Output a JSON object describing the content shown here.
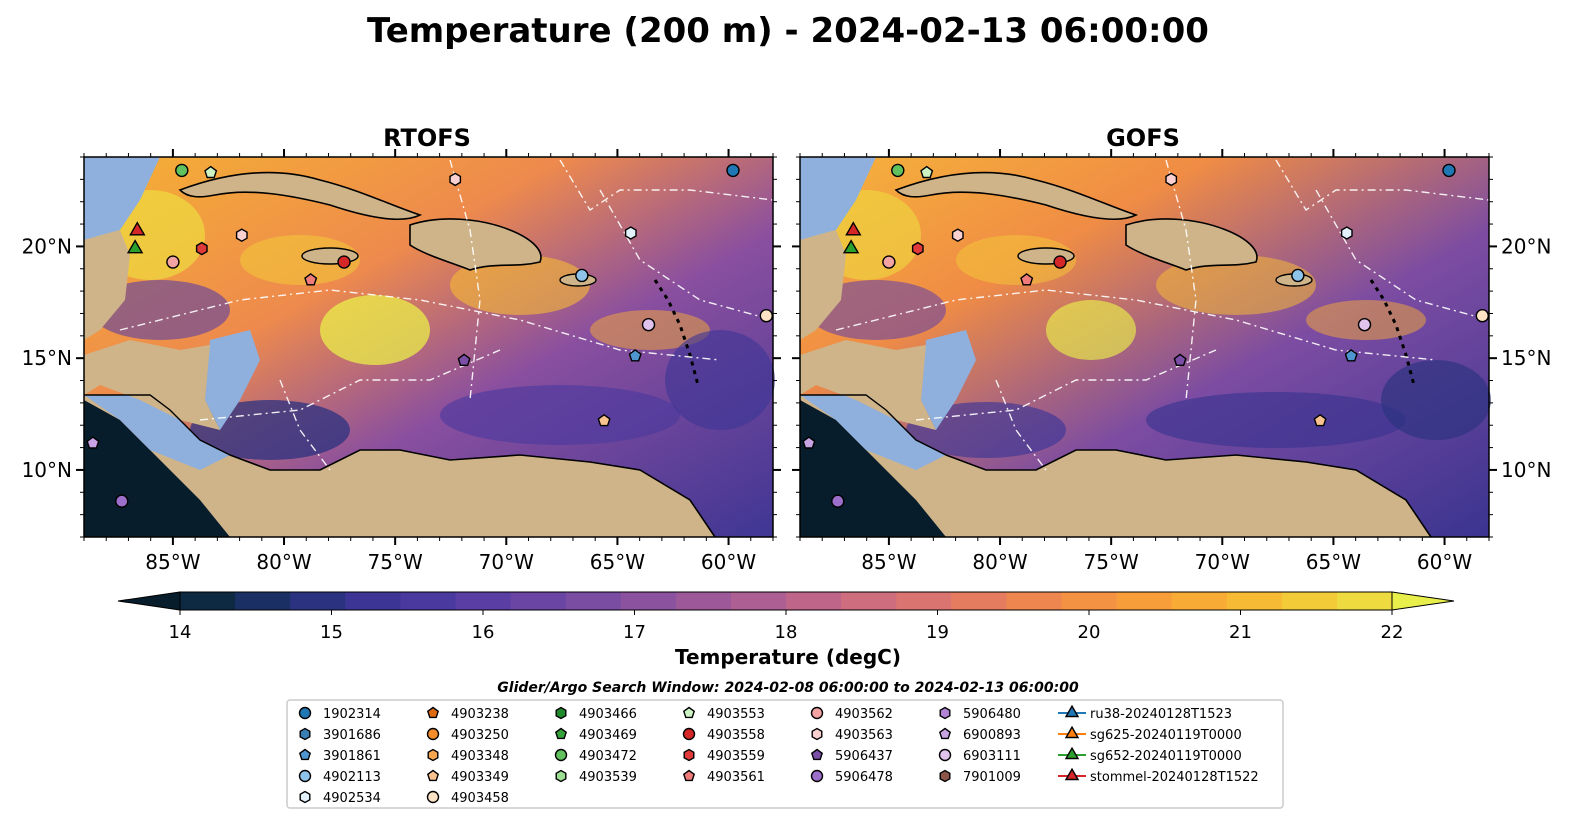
{
  "figure": {
    "title": "Temperature (200 m) - 2024-02-13 06:00:00"
  },
  "panels": [
    {
      "title": "RTOFS"
    },
    {
      "title": "GOFS"
    }
  ],
  "axes": {
    "x_ticks": [
      "85°W",
      "80°W",
      "75°W",
      "70°W",
      "65°W",
      "60°W"
    ],
    "x_tick_values": [
      -85,
      -80,
      -75,
      -70,
      -65,
      -60
    ],
    "y_ticks": [
      "20°N",
      "15°N",
      "10°N"
    ],
    "y_tick_values": [
      20,
      15,
      10
    ],
    "lon_range": [
      -89,
      -58
    ],
    "lat_range": [
      7,
      24
    ]
  },
  "colorbar": {
    "label": "Temperature (degC)",
    "ticks": [
      "14",
      "15",
      "16",
      "17",
      "18",
      "19",
      "20",
      "21",
      "22"
    ],
    "range": [
      14,
      22
    ],
    "extend": "both",
    "colors": [
      "#071d2b",
      "#0e2a43",
      "#1a2f63",
      "#2b3280",
      "#3c3596",
      "#4a399f",
      "#5a3ea3",
      "#6a45a4",
      "#7a4ca2",
      "#8b529f",
      "#9c5899",
      "#ad5e92",
      "#bf6589",
      "#cd6d7e",
      "#da7470",
      "#e57c5f",
      "#ee8650",
      "#f49244",
      "#f79e3b",
      "#f8ab35",
      "#f6ba34",
      "#f3ca38",
      "#eedb40",
      "#e9ef4a"
    ]
  },
  "legend": {
    "title": "Glider/Argo Search Window: 2024-02-08 06:00:00 to 2024-02-13 06:00:00",
    "columns": [
      [
        {
          "label": "1902314",
          "marker": "circle",
          "color": "#1f77b4"
        },
        {
          "label": "3901686",
          "marker": "hexagon",
          "color": "#3a7fb3"
        },
        {
          "label": "3901861",
          "marker": "pentagon",
          "color": "#4f95cf"
        },
        {
          "label": "4902113",
          "marker": "circle",
          "color": "#8fc3ea"
        },
        {
          "label": "4902534",
          "marker": "hexagon",
          "color": "#e3f1fb"
        }
      ],
      [
        {
          "label": "4903238",
          "marker": "pentagon",
          "color": "#e06a10"
        },
        {
          "label": "4903250",
          "marker": "circle",
          "color": "#f38c2a"
        },
        {
          "label": "4903348",
          "marker": "hexagon",
          "color": "#f7a64f"
        },
        {
          "label": "4903349",
          "marker": "pentagon",
          "color": "#f9c38f"
        },
        {
          "label": "4903458",
          "marker": "circle",
          "color": "#fde3c6"
        }
      ],
      [
        {
          "label": "4903466",
          "marker": "hexagon",
          "color": "#1f8a2a"
        },
        {
          "label": "4903469",
          "marker": "pentagon",
          "color": "#36a33a"
        },
        {
          "label": "4903472",
          "marker": "circle",
          "color": "#62c15f"
        },
        {
          "label": "4903539",
          "marker": "hexagon",
          "color": "#9ede94"
        }
      ],
      [
        {
          "label": "4903553",
          "marker": "pentagon",
          "color": "#cdf3c2"
        },
        {
          "label": "4903558",
          "marker": "circle",
          "color": "#d62728"
        },
        {
          "label": "4903559",
          "marker": "hexagon",
          "color": "#e03a3a"
        },
        {
          "label": "4903561",
          "marker": "pentagon",
          "color": "#ef7b7b"
        }
      ],
      [
        {
          "label": "4903562",
          "marker": "circle",
          "color": "#f4a3a3"
        },
        {
          "label": "4903563",
          "marker": "hexagon",
          "color": "#fad0d0"
        },
        {
          "label": "5906437",
          "marker": "pentagon",
          "color": "#7b4ea8"
        },
        {
          "label": "5906478",
          "marker": "circle",
          "color": "#9c6fca"
        }
      ],
      [
        {
          "label": "5906480",
          "marker": "hexagon",
          "color": "#b184d6"
        },
        {
          "label": "6900893",
          "marker": "pentagon",
          "color": "#c9a4e4"
        },
        {
          "label": "6903111",
          "marker": "circle",
          "color": "#e0c4ee"
        },
        {
          "label": "7901009",
          "marker": "hexagon",
          "color": "#8c564b"
        }
      ],
      [
        {
          "label": "ru38-20240128T1523",
          "marker": "triangle",
          "color": "#1f77b4"
        },
        {
          "label": "sg625-20240119T0000",
          "marker": "triangle",
          "color": "#ff7f0e"
        },
        {
          "label": "sg652-20240119T0000",
          "marker": "triangle",
          "color": "#2ca02c"
        },
        {
          "label": "stommel-20240128T1522",
          "marker": "triangle",
          "color": "#d62728"
        }
      ]
    ]
  },
  "map_markers": [
    {
      "id": "1902314",
      "lon": -59.8,
      "lat": 23.4,
      "marker": "circle",
      "color": "#1f77b4"
    },
    {
      "id": "4903472",
      "lon": -84.6,
      "lat": 23.4,
      "marker": "circle",
      "color": "#62c15f"
    },
    {
      "id": "4903553",
      "lon": -83.3,
      "lat": 23.3,
      "marker": "pentagon",
      "color": "#cdf3c2"
    },
    {
      "id": "4903563",
      "lon": -72.3,
      "lat": 23.0,
      "marker": "hexagon",
      "color": "#fad0d0"
    },
    {
      "id": "stommel-20240128T1522",
      "lon": -86.6,
      "lat": 20.7,
      "marker": "triangle",
      "color": "#d62728"
    },
    {
      "id": "sg652-20240119T0000",
      "lon": -86.7,
      "lat": 19.9,
      "marker": "triangle",
      "color": "#2ca02c"
    },
    {
      "id": "4903562",
      "lon": -85.0,
      "lat": 19.3,
      "marker": "circle",
      "color": "#f4a3a3"
    },
    {
      "id": "4903559",
      "lon": -83.7,
      "lat": 19.9,
      "marker": "hexagon",
      "color": "#e03a3a"
    },
    {
      "id": "4903563b",
      "lon": -81.9,
      "lat": 20.5,
      "marker": "hexagon",
      "color": "#fad0d0"
    },
    {
      "id": "4903558",
      "lon": -77.3,
      "lat": 19.3,
      "marker": "circle",
      "color": "#d62728"
    },
    {
      "id": "4903561",
      "lon": -78.8,
      "lat": 18.5,
      "marker": "pentagon",
      "color": "#ef7b7b"
    },
    {
      "id": "4902113",
      "lon": -66.6,
      "lat": 18.7,
      "marker": "circle",
      "color": "#8fc3ea"
    },
    {
      "id": "4902534",
      "lon": -64.4,
      "lat": 20.6,
      "marker": "hexagon",
      "color": "#e3f1fb"
    },
    {
      "id": "6903111",
      "lon": -63.6,
      "lat": 16.5,
      "marker": "circle",
      "color": "#e0c4ee"
    },
    {
      "id": "4903458",
      "lon": -58.3,
      "lat": 16.9,
      "marker": "circle",
      "color": "#fde3c6"
    },
    {
      "id": "3901861",
      "lon": -64.2,
      "lat": 15.1,
      "marker": "pentagon",
      "color": "#4f95cf"
    },
    {
      "id": "5906437",
      "lon": -71.9,
      "lat": 14.9,
      "marker": "pentagon",
      "color": "#7b4ea8"
    },
    {
      "id": "4903349",
      "lon": -65.6,
      "lat": 12.2,
      "marker": "pentagon",
      "color": "#f9c38f"
    },
    {
      "id": "6900893",
      "lon": -88.6,
      "lat": 11.2,
      "marker": "pentagon",
      "color": "#c9a4e4"
    },
    {
      "id": "5906478",
      "lon": -87.3,
      "lat": 8.6,
      "marker": "circle",
      "color": "#9c6fca"
    }
  ],
  "chart_data": [
    {
      "type": "heatmap",
      "title": "RTOFS",
      "variable": "Temperature (200 m)",
      "units": "degC",
      "x_range": [
        -89,
        -58
      ],
      "y_range": [
        7,
        24
      ],
      "value_range": [
        14,
        22
      ]
    },
    {
      "type": "heatmap",
      "title": "GOFS",
      "variable": "Temperature (200 m)",
      "units": "degC",
      "x_range": [
        -89,
        -58
      ],
      "y_range": [
        7,
        24
      ],
      "value_range": [
        14,
        22
      ]
    }
  ]
}
